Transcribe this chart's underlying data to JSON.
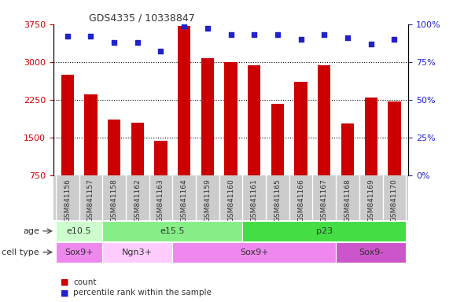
{
  "title": "GDS4335 / 10338847",
  "samples": [
    "GSM841156",
    "GSM841157",
    "GSM841158",
    "GSM841162",
    "GSM841163",
    "GSM841164",
    "GSM841159",
    "GSM841160",
    "GSM841161",
    "GSM841165",
    "GSM841166",
    "GSM841167",
    "GSM841168",
    "GSM841169",
    "GSM841170"
  ],
  "counts": [
    2750,
    2350,
    1850,
    1800,
    1430,
    3720,
    3080,
    3000,
    2940,
    2170,
    2600,
    2940,
    1780,
    2300,
    2220
  ],
  "percentile_ranks": [
    92,
    92,
    88,
    88,
    82,
    99,
    97,
    93,
    93,
    93,
    90,
    93,
    91,
    87,
    90
  ],
  "ylim_left": [
    750,
    3750
  ],
  "ylim_right": [
    0,
    100
  ],
  "yticks_left": [
    750,
    1500,
    2250,
    3000,
    3750
  ],
  "yticks_right": [
    0,
    25,
    50,
    75,
    100
  ],
  "bar_color": "#cc0000",
  "dot_color": "#2222cc",
  "age_groups": [
    {
      "label": "e10.5",
      "start": 0,
      "end": 2,
      "color": "#ccffcc"
    },
    {
      "label": "e15.5",
      "start": 2,
      "end": 8,
      "color": "#88ee88"
    },
    {
      "label": "p23",
      "start": 8,
      "end": 15,
      "color": "#44dd44"
    }
  ],
  "cell_type_groups": [
    {
      "label": "Sox9+",
      "start": 0,
      "end": 2,
      "color": "#ee88ee"
    },
    {
      "label": "Ngn3+",
      "start": 2,
      "end": 5,
      "color": "#ffccff"
    },
    {
      "label": "Sox9+",
      "start": 5,
      "end": 12,
      "color": "#ee88ee"
    },
    {
      "label": "Sox9-",
      "start": 12,
      "end": 15,
      "color": "#cc55cc"
    }
  ],
  "age_label": "age",
  "cell_type_label": "cell type",
  "legend_count_label": "count",
  "legend_pct_label": "percentile rank within the sample",
  "tick_color_left": "#cc0000",
  "tick_color_right": "#2222cc",
  "xlabel_bg": "#cccccc",
  "dotted_grid_lines": [
    1500,
    2250,
    3000
  ]
}
